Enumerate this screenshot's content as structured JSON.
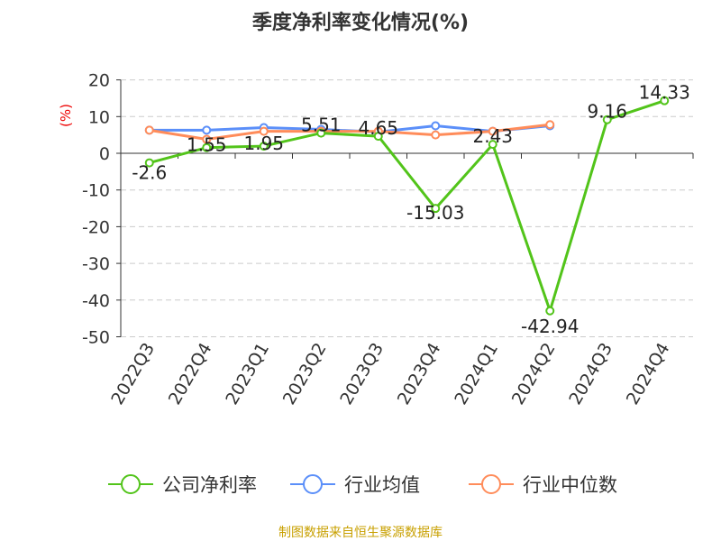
{
  "chart_data": {
    "type": "line",
    "title": "季度净利率变化情况(%)",
    "ylabel": "(%)",
    "ylim": [
      -50,
      20
    ],
    "yticks": [
      20,
      10,
      0,
      -10,
      -20,
      -30,
      -40,
      -50
    ],
    "categories": [
      "2022Q3",
      "2022Q4",
      "2023Q1",
      "2023Q2",
      "2023Q3",
      "2023Q4",
      "2024Q1",
      "2024Q2",
      "2024Q3",
      "2024Q4"
    ],
    "series": [
      {
        "name": "公司净利率",
        "color": "#52c41a",
        "values": [
          -2.6,
          1.55,
          1.95,
          5.51,
          4.65,
          -15.03,
          2.43,
          -42.94,
          9.16,
          14.33
        ],
        "labels": [
          "-2.6",
          "1.55",
          "1.95",
          "5.51",
          "4.65",
          "-15.03",
          "2.43",
          "-42.94",
          "9.16",
          "14.33"
        ]
      },
      {
        "name": "行业均值",
        "color": "#5b8ff9",
        "values": [
          6.3,
          6.3,
          7.0,
          6.5,
          5.8,
          7.5,
          6.0,
          7.5,
          null,
          null
        ]
      },
      {
        "name": "行业中位数",
        "color": "#ff8c5a",
        "values": [
          6.3,
          3.8,
          6.0,
          6.0,
          6.0,
          5.0,
          6.0,
          7.8,
          null,
          null
        ]
      }
    ],
    "grid": true,
    "legend": "bottom"
  },
  "source": "制图数据来自恒生聚源数据库"
}
